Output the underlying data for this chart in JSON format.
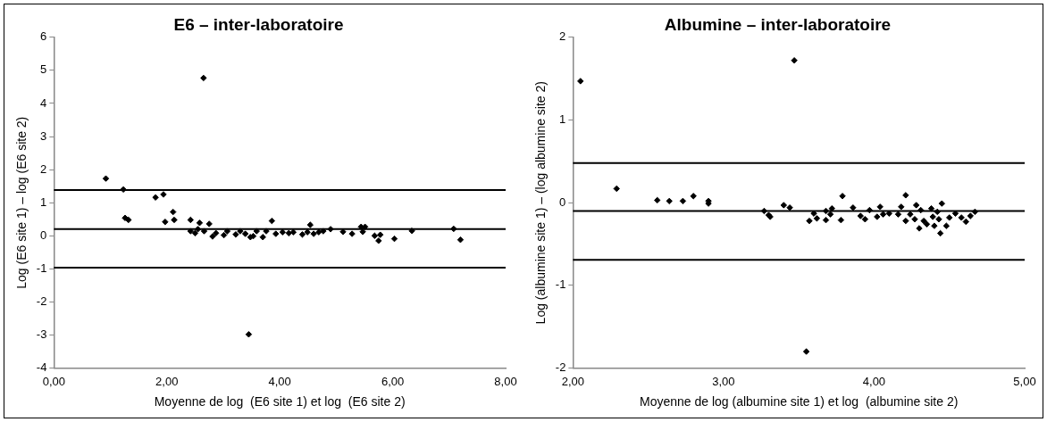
{
  "chart_data": [
    {
      "type": "scatter",
      "title": "E6 – inter-laboratoire",
      "xlabel": "Moyenne de log  (E6 site 1) et log  (E6 site 2)",
      "ylabel": "Log (E6 site 1) – log (E6 site 2)",
      "marker": "diamond",
      "legend": false,
      "grid": false,
      "xlim": [
        0,
        8
      ],
      "xticks": [
        {
          "value": 0,
          "label": "0,00"
        },
        {
          "value": 2,
          "label": "2,00"
        },
        {
          "value": 4,
          "label": "4,00"
        },
        {
          "value": 6,
          "label": "6,00"
        },
        {
          "value": 8,
          "label": "8,00"
        }
      ],
      "ylim": [
        -4,
        6
      ],
      "yticks": [
        -4,
        -3,
        -2,
        -1,
        0,
        1,
        2,
        3,
        4,
        5,
        6
      ],
      "ref_lines": [
        {
          "axis": "y",
          "value": 1.38,
          "color": "#000000"
        },
        {
          "axis": "y",
          "value": 0.2,
          "color": "#000000"
        },
        {
          "axis": "y",
          "value": -0.96,
          "color": "#000000"
        }
      ],
      "series": [
        {
          "color": "#000000",
          "x": [
            0.92,
            1.23,
            1.26,
            1.32,
            1.8,
            1.94,
            1.97,
            2.11,
            2.13,
            2.42,
            2.58,
            2.75,
            3.86,
            2.42,
            2.5,
            2.55,
            2.66,
            2.81,
            2.87,
            3.01,
            3.07,
            3.22,
            3.3,
            3.39,
            3.48,
            3.53,
            3.59,
            3.7,
            3.76,
            3.93,
            4.05,
            4.16,
            4.24,
            4.4,
            4.49,
            4.6,
            4.69,
            4.77,
            4.54,
            4.9,
            5.12,
            5.28,
            5.44,
            5.51,
            5.47,
            5.68,
            5.78,
            5.75,
            6.03,
            6.34,
            7.08,
            7.2,
            2.65,
            3.45
          ],
          "values": [
            1.73,
            1.4,
            0.54,
            0.48,
            1.16,
            1.25,
            0.42,
            0.72,
            0.48,
            0.48,
            0.39,
            0.36,
            0.45,
            0.14,
            0.08,
            0.2,
            0.14,
            -0.02,
            0.08,
            0.02,
            0.14,
            0.04,
            0.14,
            0.06,
            -0.04,
            -0.01,
            0.14,
            -0.04,
            0.14,
            0.06,
            0.11,
            0.08,
            0.11,
            0.04,
            0.11,
            0.06,
            0.11,
            0.14,
            0.33,
            0.2,
            0.12,
            0.06,
            0.27,
            0.27,
            0.12,
            0.0,
            0.03,
            -0.15,
            -0.09,
            0.15,
            0.21,
            -0.12,
            4.77,
            -2.98
          ]
        }
      ]
    },
    {
      "type": "scatter",
      "title": "Albumine – inter-laboratoire",
      "xlabel": "Moyenne de log (albumine site 1) et log  (albumine site 2)",
      "ylabel": "Log (albumine site 1) – (log albumine site 2)",
      "marker": "diamond",
      "legend": false,
      "grid": false,
      "xlim": [
        2,
        5
      ],
      "xticks": [
        {
          "value": 2,
          "label": "2,00"
        },
        {
          "value": 3,
          "label": "3,00"
        },
        {
          "value": 4,
          "label": "4,00"
        },
        {
          "value": 5,
          "label": "5,00"
        }
      ],
      "ylim": [
        -2,
        2
      ],
      "yticks": [
        -2,
        -1,
        0,
        1,
        2
      ],
      "ref_lines": [
        {
          "axis": "y",
          "value": 0.48,
          "color": "#000000"
        },
        {
          "axis": "y",
          "value": -0.1,
          "color": "#000000"
        },
        {
          "axis": "y",
          "value": -0.69,
          "color": "#000000"
        }
      ],
      "series": [
        {
          "color": "#000000",
          "x": [
            2.05,
            3.47,
            3.55,
            2.29,
            2.56,
            2.64,
            2.73,
            2.8,
            2.9,
            2.9,
            3.27,
            3.31,
            3.3,
            3.4,
            3.44,
            3.57,
            3.6,
            3.62,
            3.68,
            3.68,
            3.71,
            3.72,
            3.79,
            3.78,
            3.86,
            3.91,
            3.94,
            3.97,
            4.02,
            4.04,
            4.06,
            4.1,
            4.16,
            4.18,
            4.21,
            4.21,
            4.24,
            4.28,
            4.27,
            4.3,
            4.31,
            4.33,
            4.35,
            4.38,
            4.39,
            4.4,
            4.42,
            4.43,
            4.44,
            4.45,
            4.48,
            4.5,
            4.54,
            4.58,
            4.61,
            4.64,
            4.67
          ],
          "values": [
            1.47,
            1.72,
            -1.8,
            0.17,
            0.03,
            0.02,
            0.02,
            0.08,
            0.02,
            -0.01,
            -0.1,
            -0.17,
            -0.15,
            -0.03,
            -0.06,
            -0.22,
            -0.13,
            -0.19,
            -0.21,
            -0.1,
            -0.14,
            -0.07,
            0.08,
            -0.21,
            -0.06,
            -0.16,
            -0.2,
            -0.09,
            -0.17,
            -0.05,
            -0.14,
            -0.13,
            -0.14,
            -0.05,
            0.09,
            -0.22,
            -0.14,
            -0.03,
            -0.2,
            -0.31,
            -0.09,
            -0.22,
            -0.26,
            -0.07,
            -0.17,
            -0.28,
            -0.11,
            -0.2,
            -0.37,
            -0.01,
            -0.28,
            -0.18,
            -0.13,
            -0.18,
            -0.23,
            -0.16,
            -0.11
          ]
        }
      ]
    }
  ]
}
